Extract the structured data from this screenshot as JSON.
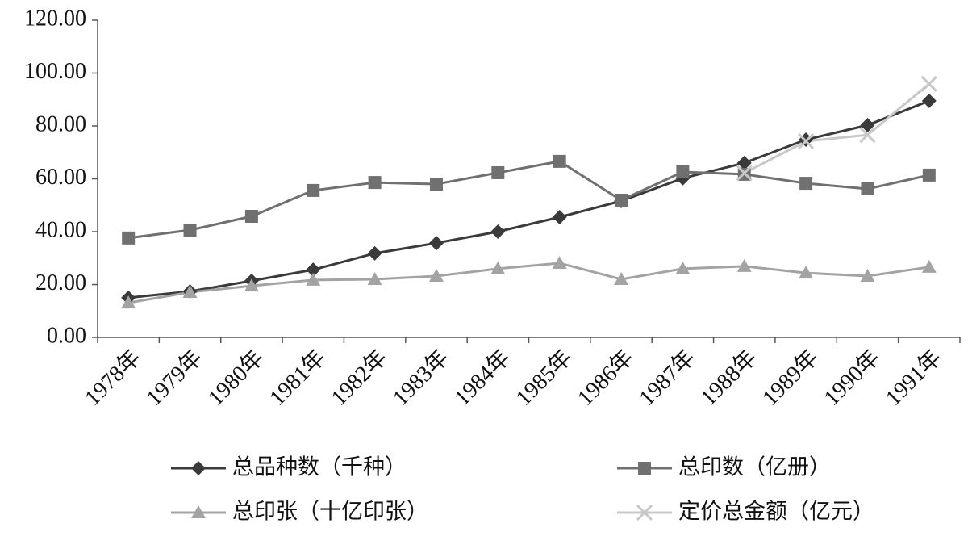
{
  "chart_data": {
    "type": "line",
    "categories": [
      "1978年",
      "1979年",
      "1980年",
      "1981年",
      "1982年",
      "1983年",
      "1984年",
      "1985年",
      "1986年",
      "1987年",
      "1988年",
      "1989年",
      "1990年",
      "1991年"
    ],
    "series": [
      {
        "name": "总品种数（千种）",
        "color": "#3a3a3a",
        "marker": "diamond",
        "values": [
          15.0,
          17.4,
          21.4,
          25.6,
          31.8,
          35.7,
          40.0,
          45.5,
          51.6,
          60.2,
          66.0,
          74.8,
          80.3,
          89.5
        ]
      },
      {
        "name": "总印数（亿册）",
        "color": "#707070",
        "marker": "square",
        "values": [
          37.6,
          40.6,
          45.8,
          55.6,
          58.6,
          58.0,
          62.3,
          66.6,
          51.9,
          62.6,
          61.7,
          58.3,
          56.2,
          61.4
        ]
      },
      {
        "name": "总印张（十亿印张）",
        "color": "#a3a3a3",
        "marker": "triangle",
        "values": [
          13.1,
          17.1,
          19.5,
          21.7,
          22.0,
          23.2,
          26.0,
          28.1,
          22.0,
          26.0,
          26.9,
          24.4,
          23.2,
          26.6
        ]
      },
      {
        "name": "定价总金额（亿元）",
        "color": "#c8c8c8",
        "marker": "x",
        "values": [
          null,
          null,
          null,
          null,
          null,
          null,
          null,
          null,
          null,
          null,
          62.2,
          74.2,
          76.6,
          95.9
        ]
      }
    ],
    "ylim": [
      0,
      120
    ],
    "yticks": [
      {
        "value": 0,
        "label": "0.00"
      },
      {
        "value": 20,
        "label": "20.00"
      },
      {
        "value": 40,
        "label": "40.00"
      },
      {
        "value": 60,
        "label": "60.00"
      },
      {
        "value": 80,
        "label": "80.00"
      },
      {
        "value": 100,
        "label": "100.00"
      },
      {
        "value": 120,
        "label": "120.00"
      }
    ]
  }
}
